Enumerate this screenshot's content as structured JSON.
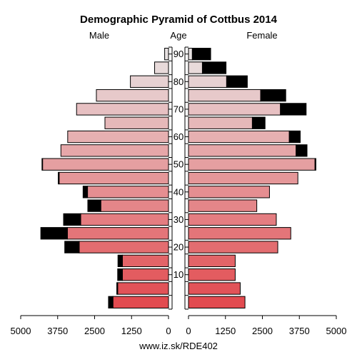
{
  "chart_data": {
    "type": "bar",
    "subtype": "population-pyramid",
    "title": "Demographic Pyramid of Cottbus 2014",
    "left_label": "Male",
    "center_label": "Age",
    "right_label": "Female",
    "source": "www.iz.sk/RDE402",
    "xlim": [
      0,
      5000
    ],
    "x_ticks": [
      0,
      1250,
      2500,
      3750,
      5000
    ],
    "age_ticks": [
      10,
      20,
      30,
      40,
      50,
      60,
      70,
      80,
      90
    ],
    "age_groups": [
      "0-4",
      "5-9",
      "10-14",
      "15-19",
      "20-24",
      "25-29",
      "30-34",
      "35-39",
      "40-44",
      "45-49",
      "50-54",
      "55-59",
      "60-64",
      "65-69",
      "70-74",
      "75-79",
      "80-84",
      "85-89",
      "90+"
    ],
    "series": [
      {
        "name": "Male",
        "values": [
          1880,
          1720,
          1560,
          1560,
          3020,
          3420,
          2970,
          2290,
          2740,
          3700,
          4260,
          3640,
          3410,
          2150,
          3110,
          2440,
          1290,
          470,
          130
        ]
      },
      {
        "name": "Male (excess)",
        "values": [
          150,
          30,
          160,
          150,
          490,
          900,
          580,
          440,
          150,
          30,
          20,
          0,
          0,
          0,
          0,
          0,
          0,
          0,
          0
        ]
      },
      {
        "name": "Female",
        "values": [
          1910,
          1750,
          1580,
          1580,
          3020,
          3460,
          2970,
          2310,
          2740,
          3700,
          4280,
          3640,
          3410,
          2160,
          3110,
          2440,
          1290,
          470,
          130
        ]
      },
      {
        "name": "Female (excess)",
        "values": [
          0,
          0,
          0,
          0,
          0,
          0,
          0,
          0,
          0,
          0,
          30,
          370,
          370,
          430,
          870,
          850,
          700,
          800,
          620
        ]
      }
    ]
  }
}
